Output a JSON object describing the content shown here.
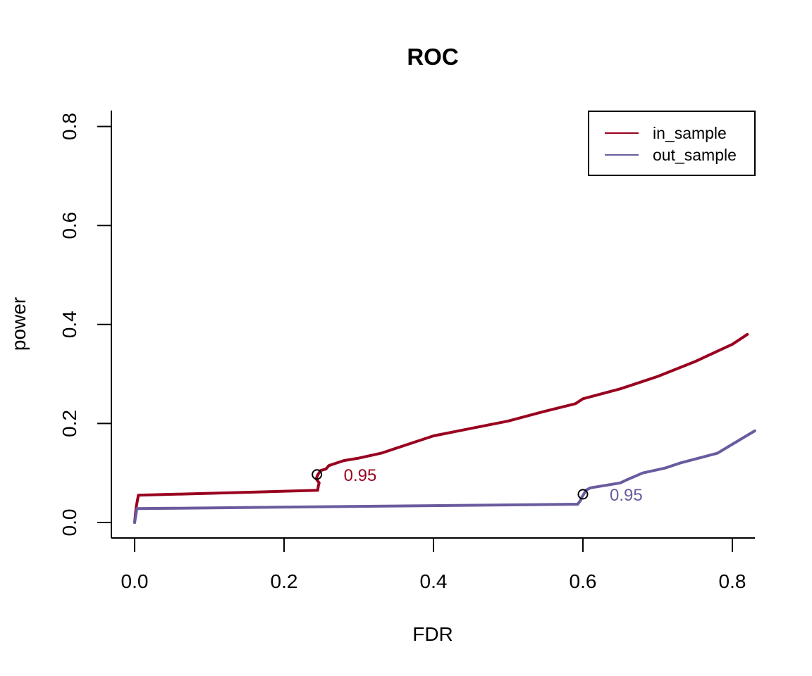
{
  "chart_data": {
    "type": "line",
    "title": "ROC",
    "xlabel": "FDR",
    "ylabel": "power",
    "xlim": [
      0,
      0.83
    ],
    "ylim": [
      0,
      0.83
    ],
    "x_ticks": [
      0.0,
      0.2,
      0.4,
      0.6,
      0.8
    ],
    "x_tick_labels": [
      "0.0",
      "0.2",
      "0.4",
      "0.6",
      "0.8"
    ],
    "y_ticks": [
      0.0,
      0.2,
      0.4,
      0.6,
      0.8
    ],
    "y_tick_labels": [
      "0.0",
      "0.2",
      "0.4",
      "0.6",
      "0.8"
    ],
    "grid": false,
    "legend": {
      "position": "top-right",
      "entries": [
        "in_sample",
        "out_sample"
      ]
    },
    "colors": {
      "in_sample": "#99001f",
      "out_sample": "#6a5b9e",
      "marker": "#000000"
    },
    "series": [
      {
        "name": "in_sample",
        "points": [
          [
            0.0,
            0.0
          ],
          [
            0.002,
            0.03
          ],
          [
            0.005,
            0.055
          ],
          [
            0.245,
            0.065
          ],
          [
            0.246,
            0.075
          ],
          [
            0.247,
            0.08
          ],
          [
            0.243,
            0.088
          ],
          [
            0.245,
            0.096
          ],
          [
            0.249,
            0.105
          ],
          [
            0.256,
            0.108
          ],
          [
            0.26,
            0.115
          ],
          [
            0.27,
            0.12
          ],
          [
            0.28,
            0.125
          ],
          [
            0.3,
            0.13
          ],
          [
            0.33,
            0.14
          ],
          [
            0.37,
            0.16
          ],
          [
            0.4,
            0.175
          ],
          [
            0.45,
            0.19
          ],
          [
            0.5,
            0.205
          ],
          [
            0.55,
            0.225
          ],
          [
            0.59,
            0.24
          ],
          [
            0.6,
            0.25
          ],
          [
            0.65,
            0.27
          ],
          [
            0.67,
            0.28
          ],
          [
            0.7,
            0.295
          ],
          [
            0.75,
            0.325
          ],
          [
            0.8,
            0.36
          ],
          [
            0.82,
            0.38
          ]
        ],
        "marker": {
          "x": 0.244,
          "y": 0.097,
          "label": "0.95"
        }
      },
      {
        "name": "out_sample",
        "points": [
          [
            0.0,
            0.0
          ],
          [
            0.003,
            0.028
          ],
          [
            0.593,
            0.037
          ],
          [
            0.597,
            0.045
          ],
          [
            0.598,
            0.05
          ],
          [
            0.601,
            0.057
          ],
          [
            0.604,
            0.065
          ],
          [
            0.61,
            0.07
          ],
          [
            0.65,
            0.08
          ],
          [
            0.66,
            0.087
          ],
          [
            0.68,
            0.1
          ],
          [
            0.71,
            0.11
          ],
          [
            0.73,
            0.12
          ],
          [
            0.78,
            0.14
          ],
          [
            0.8,
            0.158
          ],
          [
            0.83,
            0.185
          ]
        ],
        "marker": {
          "x": 0.6,
          "y": 0.057,
          "label": "0.95"
        }
      }
    ]
  }
}
